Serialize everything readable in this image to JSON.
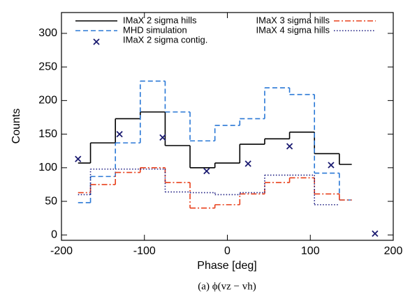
{
  "chart_data": {
    "type": "step",
    "x_label": "Phase [deg]",
    "y_label": "Counts",
    "caption": "(a) ϕ(vz − vh)",
    "xlim": [
      -200,
      200
    ],
    "xticks": [
      -200,
      -100,
      0,
      100,
      200
    ],
    "ylim": [
      -8,
      331
    ],
    "yticks": [
      0,
      50,
      100,
      150,
      200,
      250,
      300
    ],
    "step_x": [
      -180,
      -150,
      -120,
      -90,
      -60,
      -30,
      0,
      30,
      60,
      90,
      120,
      150
    ],
    "series": [
      {
        "name": "IMaX 2 sigma hills",
        "color": "#000000",
        "linestyle": "solid",
        "values": [
          107,
          137,
          173,
          183,
          133,
          100,
          107,
          135,
          143,
          153,
          121,
          105
        ]
      },
      {
        "name": "MHD simulation",
        "color": "#2a78d6",
        "linestyle": "dashed",
        "values": [
          48,
          87,
          137,
          229,
          183,
          140,
          163,
          173,
          219,
          209,
          92,
          52
        ]
      },
      {
        "name": "IMaX 2 sigma contig.",
        "color": "#1a1a70",
        "marker": "x",
        "x": [
          -180,
          -130,
          -78,
          -25,
          25,
          75,
          125,
          178
        ],
        "values": [
          113,
          150,
          145,
          95,
          106,
          132,
          104,
          2
        ]
      },
      {
        "name": "IMaX 3 sigma hills",
        "color": "#e8401c",
        "linestyle": "dashdot",
        "values": [
          63,
          75,
          93,
          100,
          78,
          40,
          45,
          61,
          78,
          85,
          61,
          52
        ]
      },
      {
        "name": "IMaX 4 sigma hills",
        "color": "#1a1a80",
        "linestyle": "dotted",
        "values": [
          60,
          98,
          98,
          98,
          64,
          63,
          60,
          63,
          89,
          89,
          45,
          null
        ]
      }
    ]
  }
}
